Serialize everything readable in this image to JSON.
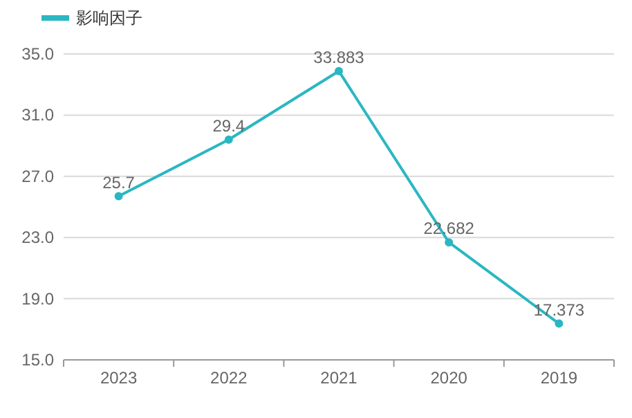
{
  "chart_data": {
    "type": "line",
    "categories": [
      "2023",
      "2022",
      "2021",
      "2020",
      "2019"
    ],
    "series": [
      {
        "name": "影响因子",
        "color": "#2ab7c2",
        "values": [
          25.7,
          29.4,
          33.883,
          22.682,
          17.373
        ]
      }
    ],
    "ylim": [
      15,
      35
    ],
    "yticks": [
      {
        "value": 15,
        "label": "15.0"
      },
      {
        "value": 19,
        "label": "19.0"
      },
      {
        "value": 23,
        "label": "23.0"
      },
      {
        "value": 27,
        "label": "27.0"
      },
      {
        "value": 31,
        "label": "31.0"
      },
      {
        "value": 35,
        "label": "35.0"
      }
    ],
    "grid": "y",
    "legend": "top left",
    "marker": "circle",
    "data_labels": true
  }
}
